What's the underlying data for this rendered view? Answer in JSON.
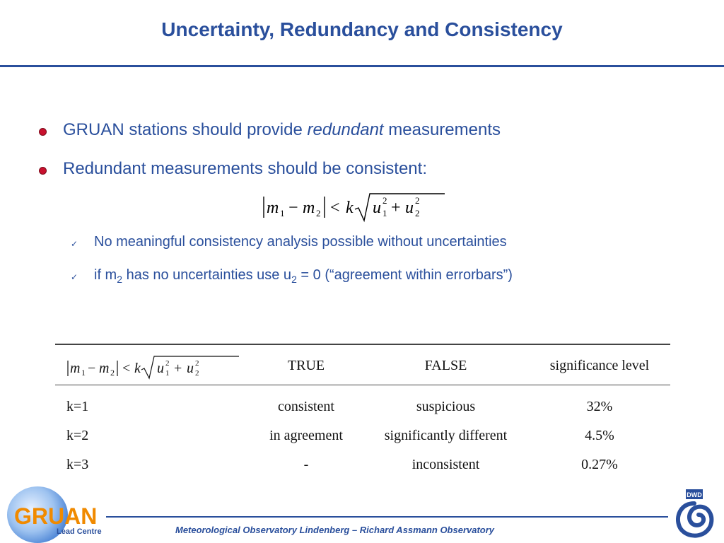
{
  "slide": {
    "title": "Uncertainty, Redundancy and Consistency",
    "bullets": [
      {
        "pre": "GRUAN stations should provide ",
        "emph": "redundant",
        "post": " measurements"
      },
      {
        "pre": "Redundant measurements should be consistent:"
      }
    ],
    "formula": "|m1 − m2| < k √(u1² + u2²)",
    "checks": [
      {
        "text": "No meaningful consistency analysis possible without uncertainties"
      },
      {
        "pre": "if m",
        "sub1": "2",
        "mid": " has no uncertainties use u",
        "sub2": "2",
        "post": " = 0 (“agreement within errorbars”)"
      }
    ]
  },
  "table": {
    "headers": [
      "TRUE",
      "FALSE",
      "significance level"
    ],
    "rows": [
      [
        "k=1",
        "consistent",
        "suspicious",
        "32%"
      ],
      [
        "k=2",
        "in agreement",
        "significantly different",
        "4.5%"
      ],
      [
        "k=3",
        "-",
        "inconsistent",
        "0.27%"
      ]
    ]
  },
  "footer": {
    "text": "Meteorological Observatory Lindenberg – Richard Assmann Observatory",
    "logo_left_word": "GRUAN",
    "logo_left_sub": "Lead Centre",
    "logo_right_word": "DWD"
  },
  "colors": {
    "accent": "#2a4f9c",
    "bullet_dot": "#c8102e",
    "logo_orange": "#f08a00"
  }
}
